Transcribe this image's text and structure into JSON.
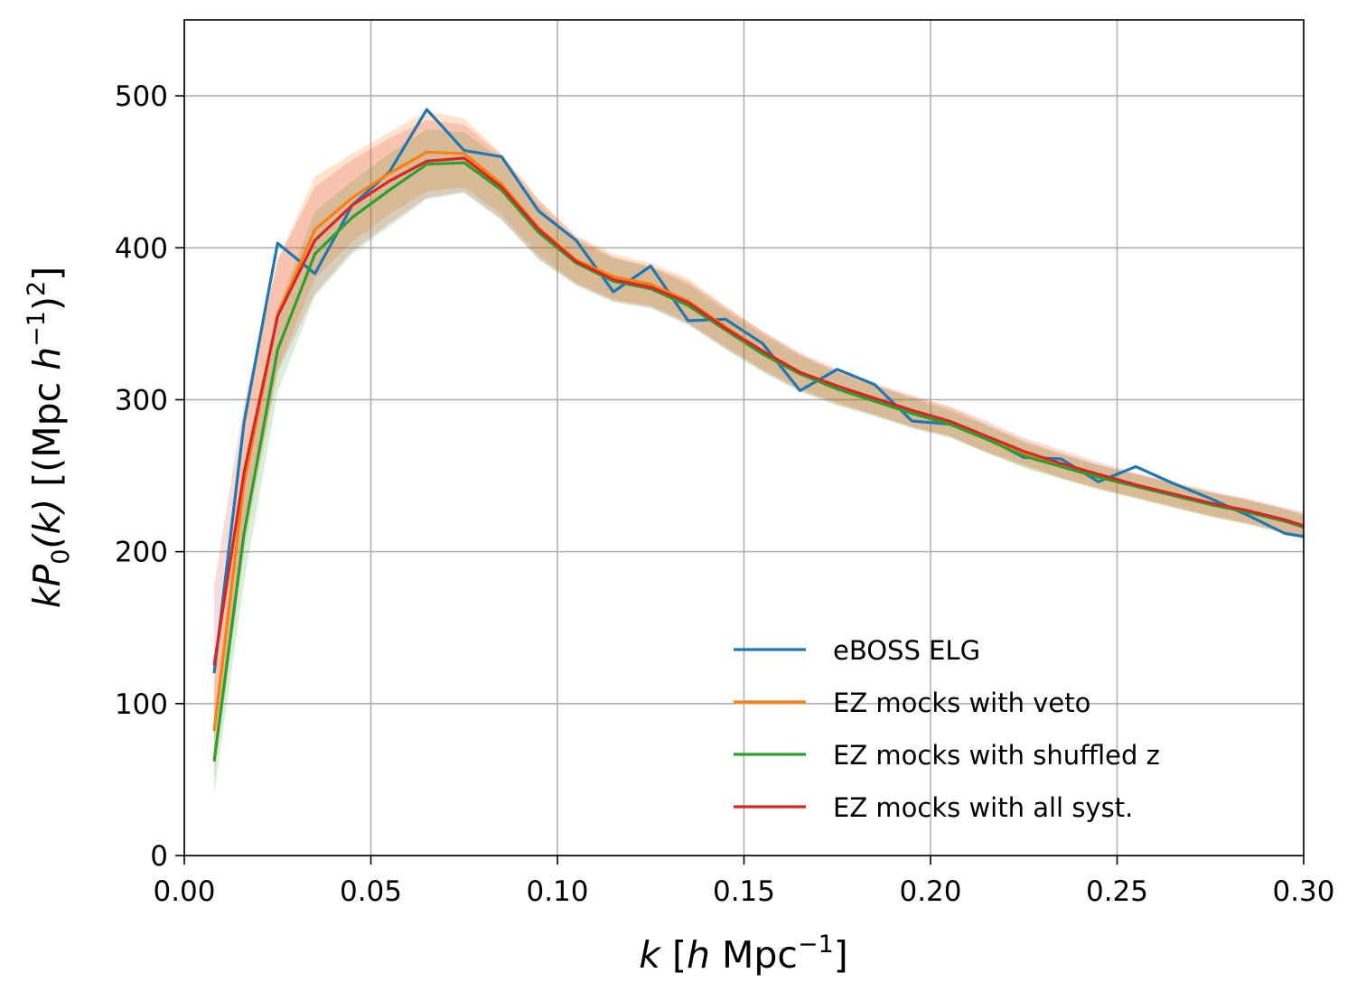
{
  "chart_data": {
    "type": "line",
    "xlabel_main": "k",
    "xlabel_unit_open": "[",
    "xlabel_h": "h",
    "xlabel_mpc": " Mpc",
    "xlabel_exp": "−1",
    "xlabel_close": "]",
    "ylabel_k": "kP",
    "ylabel_sub": "0",
    "ylabel_arg": "(k)",
    "ylabel_unit_a": " [(Mpc ",
    "ylabel_h": "h",
    "ylabel_exp1": "−1",
    "ylabel_unit_b": ")",
    "ylabel_exp2": "2",
    "ylabel_unit_c": "]",
    "xlim": [
      0.0,
      0.3
    ],
    "ylim": [
      0,
      550
    ],
    "xticks": [
      "0.00",
      "0.05",
      "0.10",
      "0.15",
      "0.20",
      "0.25",
      "0.30"
    ],
    "yticks": [
      "0",
      "100",
      "200",
      "300",
      "400",
      "500"
    ],
    "xtick_values": [
      0.0,
      0.05,
      0.1,
      0.15,
      0.2,
      0.25,
      0.3
    ],
    "ytick_values": [
      0,
      100,
      200,
      300,
      400,
      500
    ],
    "grid": true,
    "legend_position": "lower-right",
    "x": [
      0.008,
      0.016,
      0.025,
      0.035,
      0.045,
      0.055,
      0.065,
      0.075,
      0.085,
      0.095,
      0.105,
      0.115,
      0.125,
      0.135,
      0.145,
      0.155,
      0.165,
      0.175,
      0.185,
      0.195,
      0.205,
      0.215,
      0.225,
      0.235,
      0.245,
      0.255,
      0.265,
      0.275,
      0.285,
      0.295,
      0.3
    ],
    "series": [
      {
        "name": "eBOSS ELG",
        "color": "#1f77b4",
        "values": [
          120,
          285,
          403,
          383,
          428,
          450,
          491,
          464,
          460,
          424,
          405,
          371,
          388,
          352,
          353,
          337,
          306,
          320,
          310,
          286,
          284,
          275,
          262,
          261,
          246,
          256,
          245,
          235,
          224,
          212,
          210
        ]
      },
      {
        "name": "EZ mocks with veto",
        "color": "#ff7f0e",
        "values": [
          82,
          245,
          356,
          412,
          433,
          449,
          463,
          462,
          442,
          413,
          392,
          381,
          376,
          365,
          348,
          332,
          318,
          308,
          300,
          292,
          285,
          274,
          264,
          256,
          249,
          243,
          237,
          231,
          226,
          220,
          217
        ]
      },
      {
        "name": "EZ mocks with shuffled z",
        "color": "#2ca02c",
        "values": [
          62,
          212,
          333,
          396,
          420,
          438,
          455,
          456,
          438,
          410,
          390,
          378,
          373,
          362,
          346,
          330,
          317,
          307,
          299,
          291,
          284,
          274,
          263,
          256,
          249,
          243,
          237,
          231,
          226,
          220,
          216
        ]
      },
      {
        "name": "EZ mocks with all syst.",
        "color": "#d62728",
        "values": [
          125,
          252,
          355,
          405,
          428,
          444,
          457,
          459,
          440,
          412,
          391,
          379,
          374,
          364,
          347,
          332,
          318,
          309,
          301,
          293,
          286,
          276,
          266,
          258,
          251,
          244,
          238,
          232,
          227,
          221,
          217
        ]
      }
    ],
    "bands": [
      {
        "color": "#ff7f0e",
        "opacity": 0.22,
        "lower": [
          52,
          200,
          320,
          380,
          404,
          422,
          437,
          440,
          422,
          395,
          377,
          366,
          362,
          351,
          335,
          320,
          307,
          298,
          290,
          282,
          276,
          265,
          256,
          248,
          241,
          235,
          229,
          223,
          218,
          212,
          209
        ],
        "upper": [
          112,
          290,
          392,
          447,
          462,
          476,
          490,
          485,
          462,
          432,
          408,
          396,
          390,
          380,
          362,
          345,
          330,
          319,
          310,
          302,
          295,
          284,
          273,
          265,
          257,
          251,
          245,
          239,
          234,
          228,
          225
        ]
      },
      {
        "color": "#2ca02c",
        "opacity": 0.18,
        "lower": [
          40,
          180,
          305,
          368,
          396,
          414,
          432,
          436,
          418,
          392,
          375,
          364,
          360,
          349,
          333,
          318,
          305,
          296,
          289,
          281,
          275,
          265,
          255,
          248,
          241,
          235,
          229,
          223,
          218,
          212,
          208
        ],
        "upper": [
          88,
          244,
          360,
          424,
          444,
          462,
          478,
          476,
          458,
          428,
          405,
          393,
          387,
          376,
          359,
          343,
          329,
          318,
          309,
          301,
          293,
          283,
          272,
          264,
          257,
          251,
          245,
          239,
          234,
          228,
          224
        ]
      },
      {
        "color": "#d62728",
        "opacity": 0.16,
        "lower": [
          75,
          210,
          318,
          370,
          398,
          416,
          433,
          437,
          419,
          393,
          376,
          365,
          361,
          350,
          334,
          319,
          306,
          297,
          290,
          282,
          276,
          266,
          257,
          249,
          242,
          236,
          230,
          224,
          219,
          213,
          209
        ],
        "upper": [
          178,
          298,
          392,
          440,
          458,
          472,
          484,
          481,
          461,
          431,
          407,
          394,
          388,
          378,
          361,
          345,
          331,
          320,
          311,
          303,
          296,
          286,
          275,
          267,
          259,
          252,
          246,
          240,
          235,
          229,
          226
        ]
      }
    ]
  }
}
